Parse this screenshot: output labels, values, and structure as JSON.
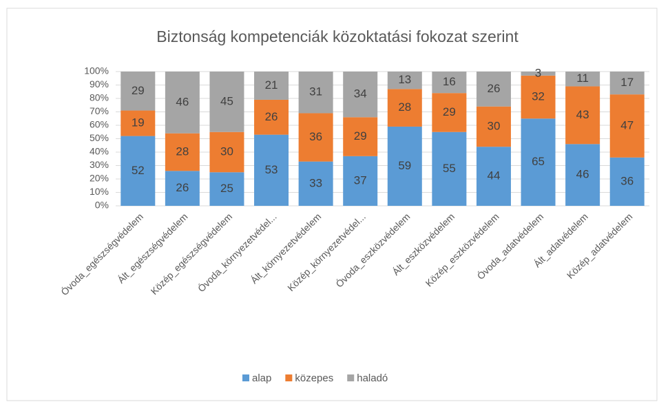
{
  "chart_data": {
    "type": "bar",
    "stacked": true,
    "title": "Biztonság kompetenciák közoktatási fokozat szerint",
    "categories": [
      "Óvoda_egészségvédelem",
      "Ált_egészségvédelem",
      "Közép_egészségvédelem",
      "Óvoda_környezetvédel...",
      "Ált_környezetvédelem",
      "Közép_környezetvédel...",
      "Óvoda_eszközvédelem",
      "Ált_eszközvédelem",
      "Közép_eszközvédelem",
      "Óvoda_adatvédelem",
      "Ált_adatvédelem",
      "Közép_adatvédelem"
    ],
    "series": [
      {
        "name": "alap",
        "color": "#5b9bd5",
        "values": [
          52,
          26,
          25,
          53,
          33,
          37,
          59,
          55,
          44,
          65,
          46,
          36
        ]
      },
      {
        "name": "közepes",
        "color": "#ed7d31",
        "values": [
          19,
          28,
          30,
          26,
          36,
          29,
          28,
          29,
          30,
          32,
          43,
          47
        ]
      },
      {
        "name": "haladó",
        "color": "#a5a5a5",
        "values": [
          29,
          46,
          45,
          21,
          31,
          34,
          13,
          16,
          26,
          3,
          11,
          17
        ]
      }
    ],
    "ylim": [
      0,
      100
    ],
    "yticks": [
      {
        "value": 0,
        "label": "0%"
      },
      {
        "value": 10,
        "label": "10%"
      },
      {
        "value": 20,
        "label": "20%"
      },
      {
        "value": 30,
        "label": "30%"
      },
      {
        "value": 40,
        "label": "40%"
      },
      {
        "value": 50,
        "label": "50%"
      },
      {
        "value": 60,
        "label": "60%"
      },
      {
        "value": 70,
        "label": "70%"
      },
      {
        "value": 80,
        "label": "80%"
      },
      {
        "value": 90,
        "label": "90%"
      },
      {
        "value": 100,
        "label": "100%"
      }
    ],
    "grid": true,
    "legend": "bottom"
  }
}
